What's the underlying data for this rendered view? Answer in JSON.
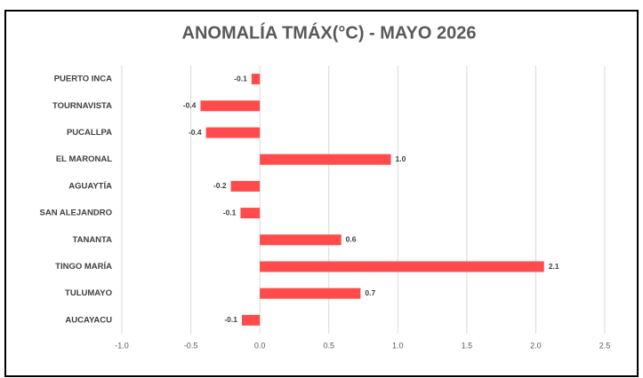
{
  "chart_data": {
    "type": "bar",
    "orientation": "horizontal",
    "title": "ANOMALÍA TMÁX(°C) - MAYO 2026",
    "categories": [
      "PUERTO INCA",
      "TOURNAVISTA",
      "PUCALLPA",
      "EL MARONAL",
      "AGUAYTÍA",
      "SAN ALEJANDRO",
      "TANANTA",
      "TINGO MARÍA",
      "TULUMAYO",
      "AUCAYACU"
    ],
    "values": [
      -0.06,
      -0.43,
      -0.39,
      0.95,
      -0.21,
      -0.14,
      0.59,
      2.06,
      0.73,
      -0.13
    ],
    "value_labels": [
      "-0.1",
      "-0.4",
      "-0.4",
      "1.0",
      "-0.2",
      "-0.1",
      "0.6",
      "2.1",
      "0.7",
      "-0.1"
    ],
    "color": "#ff4b4b",
    "xlim": [
      -1.0,
      2.5
    ],
    "xticks": [
      {
        "value": -1.0,
        "label": "-1.0"
      },
      -0.5,
      {
        "value": 0,
        "label": "0.0"
      },
      0.5,
      {
        "value": 1.0,
        "label": "1.0"
      },
      1.5,
      {
        "value": 2.0,
        "label": "2.0"
      },
      2.5
    ],
    "grid": true
  }
}
